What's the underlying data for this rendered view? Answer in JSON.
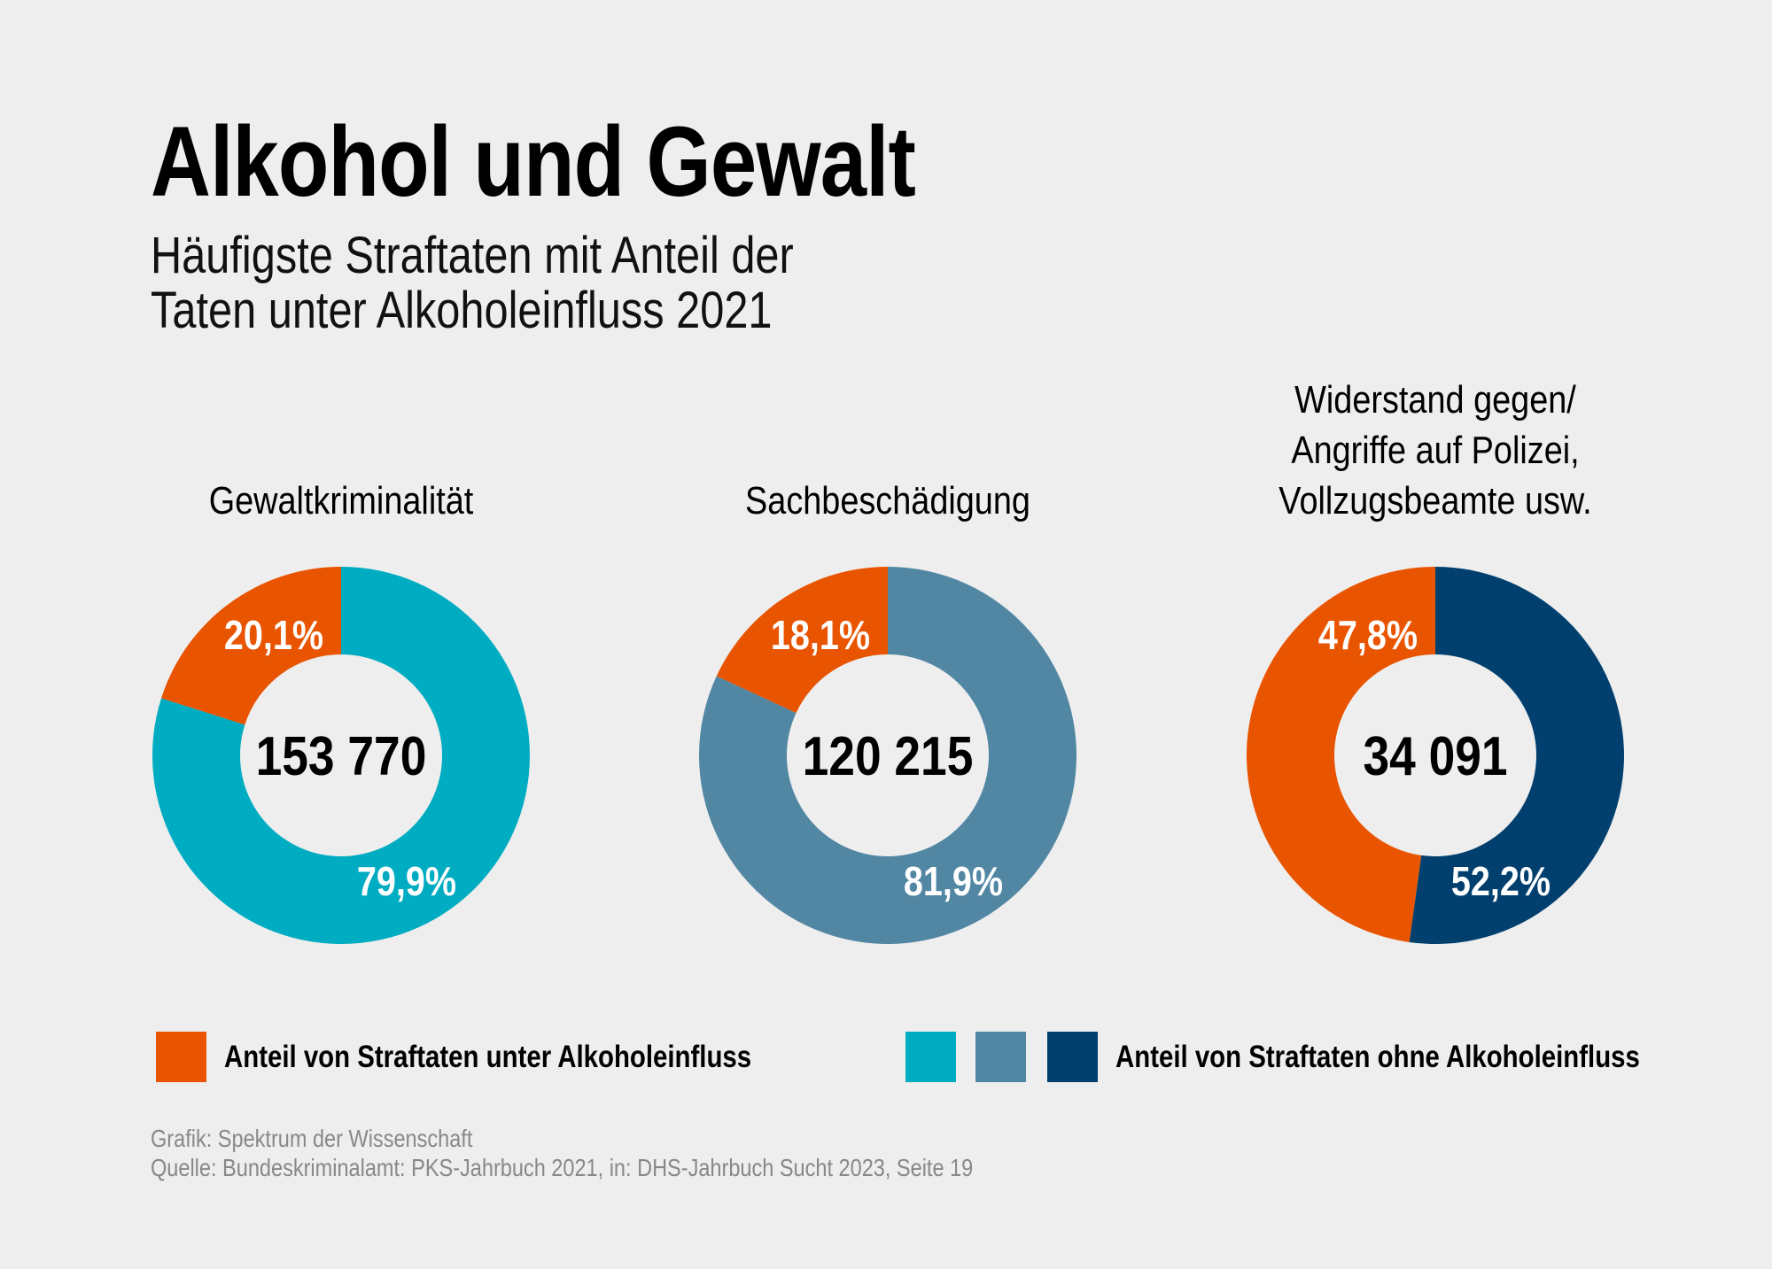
{
  "title": "Alkohol und Gewalt",
  "subtitle": [
    "Häufigste Straftaten mit Anteil der",
    "Taten unter Alkoholeinfluss 2021"
  ],
  "colors": {
    "background": "#eeeeee",
    "with_alcohol": "#e95400",
    "without_alcohol": [
      "#00acc1",
      "#5287a4",
      "#003f6e"
    ]
  },
  "chart_data": {
    "type": "pie",
    "variant": "donut",
    "charts": [
      {
        "title": [
          "Gewaltkriminalität"
        ],
        "total_label": "153 770",
        "total": 153770,
        "slices": [
          {
            "label": "20,1%",
            "value": 20.1,
            "color": "#e95400"
          },
          {
            "label": "79,9%",
            "value": 79.9,
            "color": "#00acc1"
          }
        ]
      },
      {
        "title": [
          "Sachbeschädigung"
        ],
        "total_label": "120 215",
        "total": 120215,
        "slices": [
          {
            "label": "18,1%",
            "value": 18.1,
            "color": "#e95400"
          },
          {
            "label": "81,9%",
            "value": 81.9,
            "color": "#5287a4"
          }
        ]
      },
      {
        "title": [
          "Widerstand gegen/",
          "Angriffe auf Polizei,",
          "Vollzugsbeamte usw."
        ],
        "total_label": "34 091",
        "total": 34091,
        "slices": [
          {
            "label": "47,8%",
            "value": 47.8,
            "color": "#e95400"
          },
          {
            "label": "52,2%",
            "value": 52.2,
            "color": "#003f6e"
          }
        ]
      }
    ],
    "legend": {
      "placement": "bottom",
      "with_alcohol": "Anteil von Straftaten unter Alkoholeinfluss",
      "without_alcohol": "Anteil von Straftaten ohne Alkoholeinfluss"
    }
  },
  "footer": {
    "credit": "Grafik: Spektrum der Wissenschaft",
    "source": "Quelle: Bundeskriminalamt: PKS-Jahrbuch 2021, in: DHS-Jahrbuch Sucht 2023, Seite 19"
  }
}
